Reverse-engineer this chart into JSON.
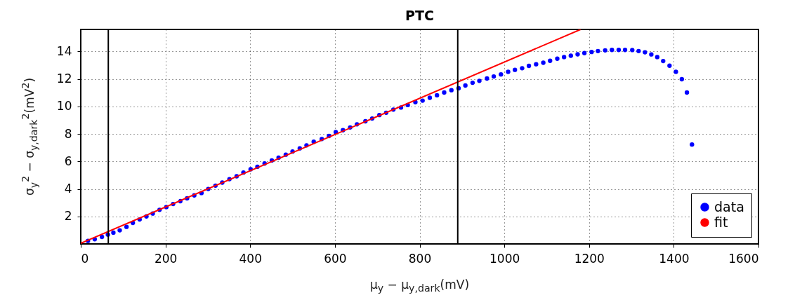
{
  "chart_data": {
    "type": "scatter",
    "title": "PTC",
    "xlabel": "μ$_{y}$ − μ$_{y,dark}$(mV)",
    "ylabel": "σ$_{y}$$^{2}$ − σ$_{y,dark}$$^{2}$(mV$^{2}$)",
    "xlim": [
      0,
      1600
    ],
    "xticks": [
      0,
      200,
      400,
      600,
      800,
      1000,
      1200,
      1400,
      1600
    ],
    "ylim": [
      0,
      15.6
    ],
    "yticks": [
      2,
      4,
      6,
      8,
      10,
      12,
      14
    ],
    "grid": true,
    "legend": "bottom right",
    "ref_lines": [
      {
        "axis": "x",
        "value": 65,
        "color": "#000000"
      },
      {
        "axis": "x",
        "value": 890,
        "color": "#000000"
      }
    ],
    "series": [
      {
        "name": "data",
        "marker": "circle",
        "color": "#0000ff",
        "x": [
          17,
          33,
          50,
          64,
          77,
          92,
          108,
          123,
          139,
          155,
          170,
          186,
          202,
          218,
          235,
          251,
          268,
          285,
          301,
          318,
          334,
          351,
          368,
          384,
          401,
          417,
          434,
          451,
          467,
          484,
          500,
          517,
          533,
          550,
          569,
          586,
          602,
          619,
          636,
          652,
          672,
          688,
          705,
          721,
          738,
          756,
          772,
          790,
          807,
          824,
          841,
          858,
          875,
          892,
          908,
          925,
          941,
          959,
          975,
          992,
          1009,
          1025,
          1042,
          1058,
          1075,
          1092,
          1108,
          1125,
          1141,
          1157,
          1173,
          1189,
          1206,
          1221,
          1238,
          1254,
          1270,
          1285,
          1302,
          1317,
          1332,
          1347,
          1361,
          1375,
          1390,
          1405,
          1419,
          1431,
          1443
        ],
        "values": [
          0.22,
          0.34,
          0.51,
          0.68,
          0.82,
          0.99,
          1.24,
          1.53,
          1.78,
          2.0,
          2.21,
          2.48,
          2.68,
          2.9,
          3.11,
          3.32,
          3.53,
          3.7,
          4.0,
          4.24,
          4.46,
          4.71,
          4.92,
          5.19,
          5.43,
          5.61,
          5.85,
          6.07,
          6.27,
          6.49,
          6.72,
          6.95,
          7.17,
          7.43,
          7.63,
          7.85,
          8.13,
          8.27,
          8.47,
          8.7,
          8.92,
          9.12,
          9.37,
          9.54,
          9.77,
          9.92,
          10.1,
          10.31,
          10.42,
          10.63,
          10.81,
          11.01,
          11.18,
          11.32,
          11.52,
          11.72,
          11.86,
          12.03,
          12.18,
          12.33,
          12.52,
          12.66,
          12.78,
          12.95,
          13.07,
          13.18,
          13.32,
          13.47,
          13.59,
          13.69,
          13.79,
          13.88,
          13.96,
          14.03,
          14.08,
          14.11,
          14.11,
          14.11,
          14.1,
          14.03,
          13.94,
          13.78,
          13.59,
          13.3,
          12.96,
          12.52,
          11.98,
          11.01,
          7.23
        ]
      },
      {
        "name": "fit",
        "type": "line",
        "color": "#ff0000",
        "line_style": "solid",
        "x": [
          0,
          1180
        ],
        "values": [
          0.05,
          15.6
        ]
      }
    ]
  }
}
